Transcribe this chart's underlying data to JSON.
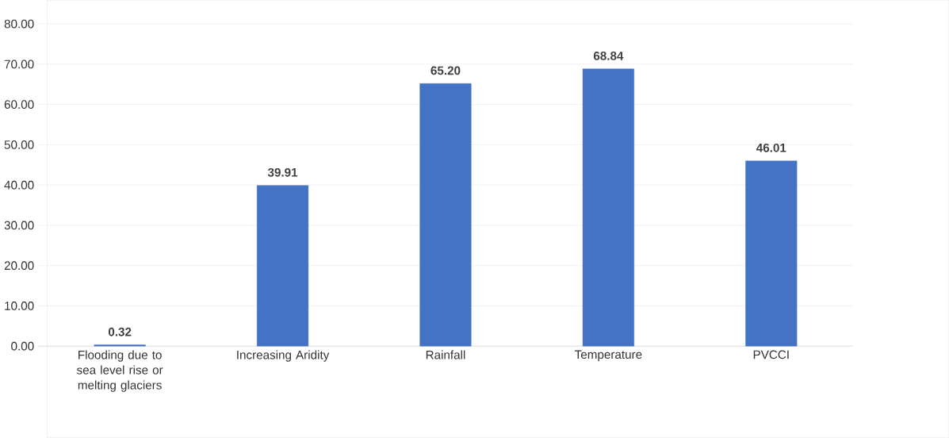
{
  "chart_data": {
    "type": "bar",
    "categories": [
      "Flooding due to sea level rise or melting glaciers",
      "Increasing Aridity",
      "Rainfall",
      "Temperature",
      "PVCCI"
    ],
    "values": [
      0.32,
      39.91,
      65.2,
      68.84,
      46.01
    ],
    "value_labels": [
      "0.32",
      "39.91",
      "65.20",
      "68.84",
      "46.01"
    ],
    "color": "#4472c4",
    "ylim": [
      0,
      80
    ],
    "yticks": [
      {
        "value": 0,
        "label": "0.00"
      },
      {
        "value": 10,
        "label": "10.00"
      },
      {
        "value": 20,
        "label": "20.00"
      },
      {
        "value": 30,
        "label": "30.00"
      },
      {
        "value": 40,
        "label": "40.00"
      },
      {
        "value": 50,
        "label": "50.00"
      },
      {
        "value": 60,
        "label": "60.00"
      },
      {
        "value": 70,
        "label": "70.00"
      },
      {
        "value": 80,
        "label": "80.00"
      }
    ],
    "grid": "y"
  }
}
